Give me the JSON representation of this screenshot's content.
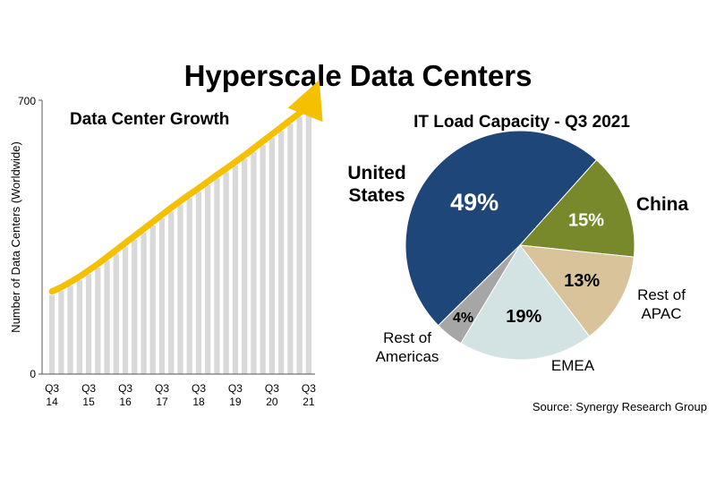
{
  "title": "Hyperscale Data Centers",
  "source": "Source: Synergy Research Group",
  "chart_data": [
    {
      "type": "bar",
      "title": "Data Center Growth",
      "ylabel": "Number of Data Centers (Worldwide)",
      "xlabel": "",
      "ylim": [
        0,
        700
      ],
      "yticks": [
        "0",
        "700"
      ],
      "categories": [
        "Q3 14",
        "Q4 14",
        "Q1 15",
        "Q2 15",
        "Q3 15",
        "Q4 15",
        "Q1 16",
        "Q2 16",
        "Q3 16",
        "Q4 16",
        "Q1 17",
        "Q2 17",
        "Q3 17",
        "Q4 17",
        "Q1 18",
        "Q2 18",
        "Q3 18",
        "Q4 18",
        "Q1 19",
        "Q2 19",
        "Q3 19",
        "Q4 19",
        "Q1 20",
        "Q2 20",
        "Q3 20",
        "Q4 20",
        "Q1 21",
        "Q2 21",
        "Q3 21"
      ],
      "xtick_labels": [
        {
          "q": "Q3",
          "y": "14",
          "index": 0
        },
        {
          "q": "Q3",
          "y": "15",
          "index": 4
        },
        {
          "q": "Q3",
          "y": "16",
          "index": 8
        },
        {
          "q": "Q3",
          "y": "17",
          "index": 12
        },
        {
          "q": "Q3",
          "y": "18",
          "index": 16
        },
        {
          "q": "Q3",
          "y": "19",
          "index": 20
        },
        {
          "q": "Q3",
          "y": "20",
          "index": 24
        },
        {
          "q": "Q3",
          "y": "21",
          "index": 28
        }
      ],
      "values": [
        202,
        213,
        226,
        240,
        256,
        272,
        290,
        308,
        326,
        344,
        362,
        380,
        398,
        416,
        433,
        450,
        466,
        483,
        500,
        516,
        533,
        550,
        568,
        586,
        604,
        622,
        640,
        658,
        675
      ],
      "bar_color": "#d9d9d9",
      "trend_color": "#f5c000",
      "grid": false
    },
    {
      "type": "pie",
      "title": "IT Load Capacity - Q3 2021",
      "slices": [
        {
          "label": "United States",
          "label_lines": [
            "United",
            "States"
          ],
          "value": 49,
          "pct": "49%",
          "color": "#1f4678",
          "pct_color": "#ffffff"
        },
        {
          "label": "China",
          "label_lines": [
            "China"
          ],
          "value": 15,
          "pct": "15%",
          "color": "#77892a",
          "pct_color": "#ffffff"
        },
        {
          "label": "Rest of APAC",
          "label_lines": [
            "Rest of",
            "APAC"
          ],
          "value": 13,
          "pct": "13%",
          "color": "#d8c39a",
          "pct_color": "#000000"
        },
        {
          "label": "EMEA",
          "label_lines": [
            "EMEA"
          ],
          "value": 19,
          "pct": "19%",
          "color": "#d3e3e3",
          "pct_color": "#000000"
        },
        {
          "label": "Rest of Americas",
          "label_lines": [
            "Rest of",
            "Americas"
          ],
          "value": 4,
          "pct": "4%",
          "color": "#a6a6a6",
          "pct_color": "#000000"
        }
      ]
    }
  ]
}
